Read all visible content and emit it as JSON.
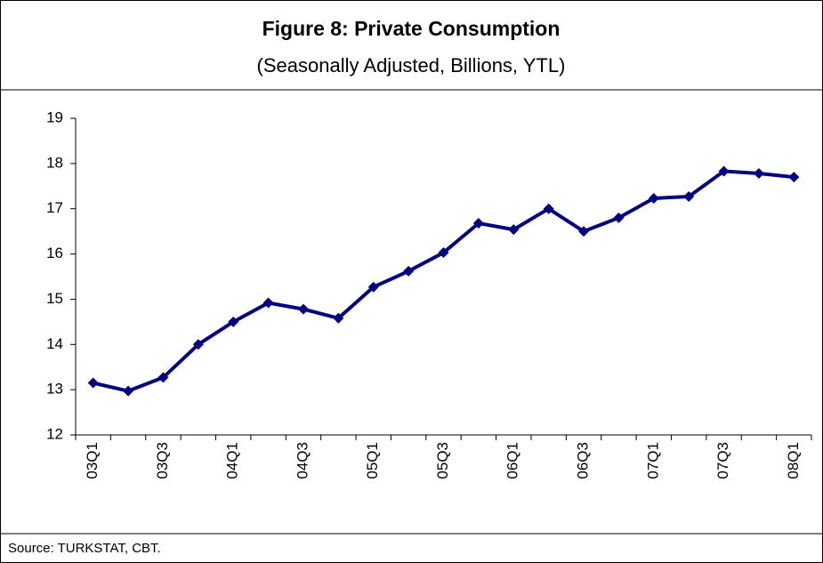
{
  "chart_data": {
    "type": "line",
    "title": "Figure 8: Private Consumption",
    "subtitle": "(Seasonally Adjusted, Billions, YTL)",
    "source": "Source: TURKSTAT, CBT.",
    "categories": [
      "03Q1",
      null,
      "03Q3",
      null,
      "04Q1",
      null,
      "04Q3",
      null,
      "05Q1",
      null,
      "05Q3",
      null,
      "06Q1",
      null,
      "06Q3",
      null,
      "07Q1",
      null,
      "07Q3",
      null,
      "08Q1"
    ],
    "series": [
      {
        "name": "Private Consumption",
        "color": "#000080",
        "values": [
          13.15,
          12.97,
          13.27,
          14.0,
          14.5,
          14.92,
          14.78,
          14.58,
          15.27,
          15.62,
          16.03,
          16.68,
          16.54,
          17.0,
          16.5,
          16.8,
          17.23,
          17.27,
          17.83,
          17.78,
          17.7
        ]
      }
    ],
    "ylim": [
      12,
      19
    ],
    "yticks": [
      12,
      13,
      14,
      15,
      16,
      17,
      18,
      19
    ]
  }
}
